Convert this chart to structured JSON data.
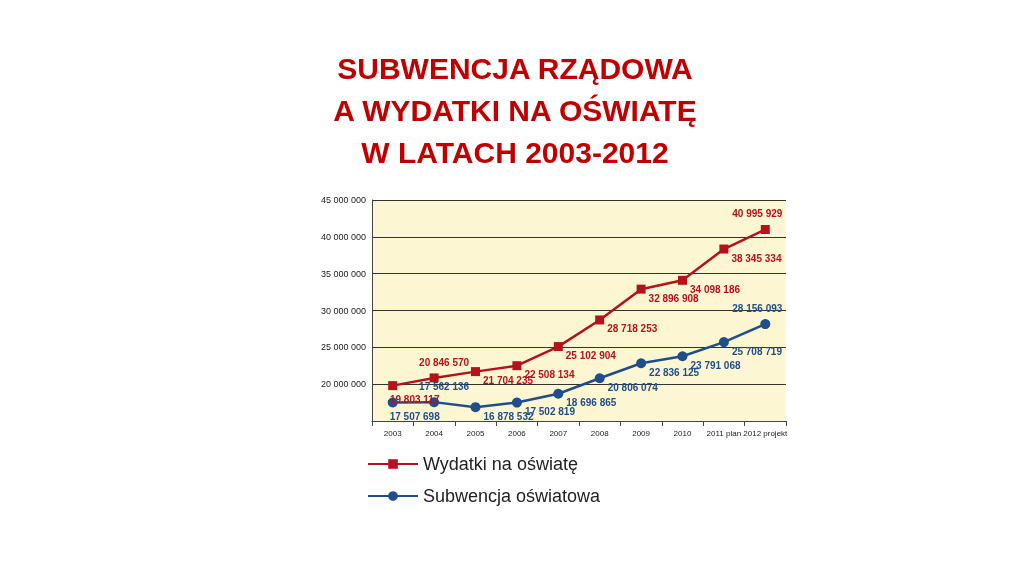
{
  "chart_data": {
    "type": "line",
    "title": "SUBWENCJA RZĄDOWA\nA WYDATKI NA OŚWIATĘ\nW LATACH 2003-2012",
    "categories": [
      "2003",
      "2004",
      "2005",
      "2006",
      "2007",
      "2008",
      "2009",
      "2010",
      "2011 plan",
      "2012 projekt"
    ],
    "series": [
      {
        "name": "Wydatki na oświatę",
        "color": "#b5121b",
        "marker": "square",
        "values": [
          19803117,
          20846570,
          21704235,
          22508134,
          25102904,
          28718253,
          32896908,
          34098186,
          38345334,
          40995929
        ]
      },
      {
        "name": "Subwencja oświatowa",
        "color": "#1f4e8c",
        "marker": "circle",
        "values": [
          17507698,
          17562136,
          16878532,
          17502819,
          18696865,
          20806074,
          22836125,
          23791068,
          25708719,
          28156093
        ]
      }
    ],
    "ylim": [
      15000000,
      45000000
    ],
    "yticks": [
      20000000,
      25000000,
      30000000,
      35000000,
      40000000,
      45000000
    ],
    "grid": "y",
    "legend": "bottom left",
    "data_labels": true
  }
}
